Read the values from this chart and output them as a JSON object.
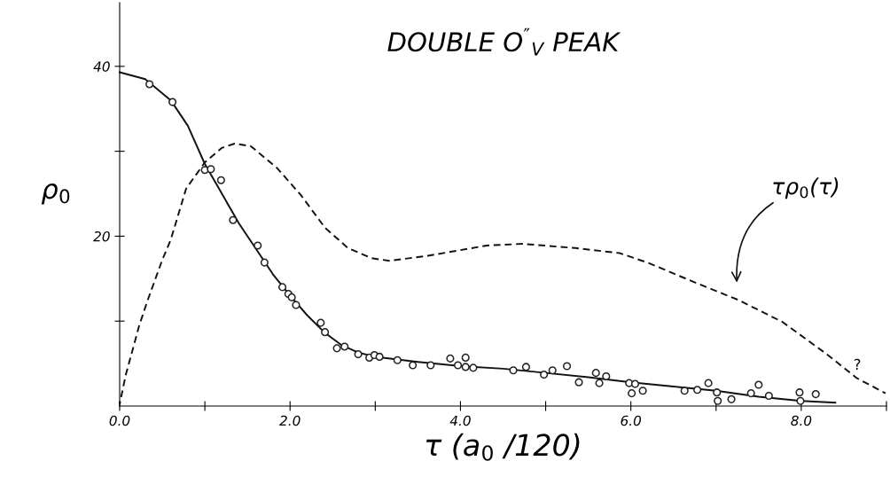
{
  "chart_data": {
    "type": "line",
    "title": "DOUBLE O$^{″}$$_{V}$ PEAK",
    "xlabel": "τ (a$_{0}$ /120)",
    "ylabel": "ρ$_{0}$",
    "xlim": [
      0,
      9
    ],
    "ylim": [
      0,
      47.5
    ],
    "xticks": [
      {
        "value": 0,
        "label": "0.0"
      },
      {
        "value": 1,
        "label": null
      },
      {
        "value": 2,
        "label": "2.0"
      },
      {
        "value": 3,
        "label": null
      },
      {
        "value": 4,
        "label": "4.0"
      },
      {
        "value": 5,
        "label": null
      },
      {
        "value": 6,
        "label": "6.0"
      },
      {
        "value": 7,
        "label": null
      },
      {
        "value": 8,
        "label": "8.0"
      },
      {
        "value": 9,
        "label": null
      }
    ],
    "yticks": [
      {
        "value": 10,
        "label": null
      },
      20,
      {
        "value": 30,
        "label": null
      },
      40
    ],
    "grid": false,
    "legend": false,
    "series": [
      {
        "type": "scatter",
        "marker": "circle",
        "color": "#222222",
        "x": [
          0.35,
          0.62,
          1.0,
          1.07,
          1.19,
          1.33,
          1.62,
          1.7,
          1.91,
          1.98,
          2.02,
          2.07,
          2.36,
          2.41,
          2.55,
          2.64,
          2.8,
          2.93,
          2.99,
          3.05,
          3.26,
          3.44,
          3.65,
          3.88,
          3.97,
          4.06,
          4.06,
          4.15,
          4.62,
          4.77,
          4.98,
          5.08,
          5.25,
          5.39,
          5.59,
          5.63,
          5.71,
          5.98,
          6.05,
          6.01,
          6.14,
          6.63,
          6.78,
          6.91,
          7.01,
          7.02,
          7.18,
          7.41,
          7.5,
          7.62,
          7.98,
          7.99,
          8.17
        ],
        "values": [
          37.9,
          35.8,
          27.8,
          27.9,
          26.6,
          21.9,
          18.9,
          16.9,
          14.0,
          13.2,
          12.8,
          11.9,
          9.8,
          8.7,
          6.8,
          7.0,
          6.1,
          5.7,
          6.0,
          5.8,
          5.4,
          4.8,
          4.8,
          5.6,
          4.8,
          5.7,
          4.6,
          4.5,
          4.2,
          4.6,
          3.7,
          4.2,
          4.7,
          2.8,
          3.9,
          2.7,
          3.5,
          2.7,
          2.6,
          1.5,
          1.8,
          1.8,
          1.9,
          2.7,
          1.6,
          0.6,
          0.8,
          1.5,
          2.5,
          1.2,
          1.6,
          0.6,
          1.4
        ]
      },
      {
        "line_style": "solid",
        "color": "#111111",
        "x": [
          0,
          0.3,
          0.6,
          0.8,
          1.0,
          1.2,
          1.4,
          1.6,
          1.8,
          2.0,
          2.2,
          2.4,
          2.6,
          2.8,
          3.0,
          3.5,
          4.0,
          4.5,
          5.0,
          5.5,
          6.0,
          6.5,
          7.0,
          7.5,
          8.0,
          8.4
        ],
        "values": [
          39.3,
          38.5,
          36,
          33,
          28.5,
          25,
          21.5,
          18.5,
          15.5,
          13,
          10.7,
          8.7,
          7.2,
          6.3,
          5.8,
          5.2,
          4.7,
          4.4,
          3.9,
          3.4,
          2.8,
          2.3,
          1.8,
          1.1,
          0.6,
          0.4
        ]
      },
      {
        "line_style": "dashed",
        "color": "#111111",
        "x": [
          0,
          0.07,
          0.23,
          0.33,
          0.5,
          0.6,
          0.78,
          1.0,
          1.2,
          1.35,
          1.54,
          1.85,
          2.13,
          2.41,
          2.68,
          2.96,
          3.17,
          3.62,
          4.31,
          4.73,
          5.35,
          5.87,
          6.22,
          6.74,
          7.26,
          7.78,
          8.3,
          8.65,
          8.99
        ],
        "values": [
          0.2,
          3.6,
          9.5,
          12.5,
          17.2,
          19.6,
          25.6,
          28.7,
          30.4,
          30.9,
          30.6,
          28,
          24.8,
          21,
          18.6,
          17.4,
          17.1,
          17.7,
          18.9,
          19.1,
          18.6,
          18.0,
          16.8,
          14.6,
          12.5,
          9.9,
          6.1,
          3.3,
          1.5
        ]
      }
    ],
    "annotations": [
      "τρ$_{0}$(τ)",
      "?"
    ]
  }
}
